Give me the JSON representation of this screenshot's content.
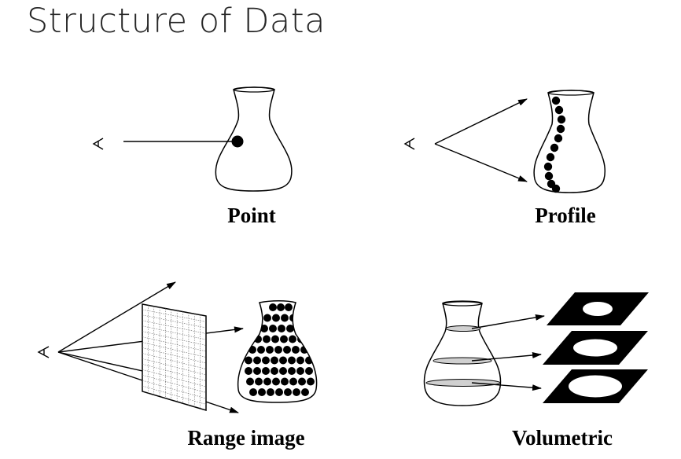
{
  "slide": {
    "title": "Structure of Data"
  },
  "panels": {
    "point": {
      "caption": "Point"
    },
    "profile": {
      "caption": "Profile"
    },
    "range_image": {
      "caption": "Range image"
    },
    "volumetric": {
      "caption": "Volumetric"
    }
  },
  "colors": {
    "title_text": "#262626",
    "ink": "#000000",
    "background": "#ffffff",
    "water": "#d0d0d0"
  }
}
